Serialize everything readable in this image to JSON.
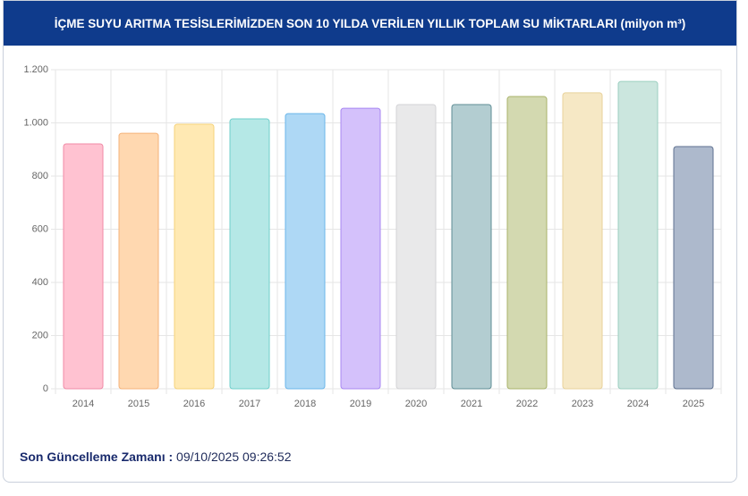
{
  "chart_data": {
    "type": "bar",
    "title": "İÇME SUYU ARITMA TESİSLERİMİZDEN SON 10 YILDA VERİLEN YILLIK TOPLAM SU MİKTARLARI (milyon m³)",
    "categories": [
      "2014",
      "2015",
      "2016",
      "2017",
      "2018",
      "2019",
      "2020",
      "2021",
      "2022",
      "2023",
      "2024",
      "2025"
    ],
    "values": [
      921,
      961,
      995,
      1015,
      1035,
      1055,
      1069,
      1069,
      1099,
      1113,
      1156,
      911
    ],
    "colors": [
      "#ffc2d1",
      "#ffd8b0",
      "#ffe9b3",
      "#b5e8e6",
      "#aed8f5",
      "#d4c1fb",
      "#e9e9ea",
      "#b3cdd1",
      "#d3d9b0",
      "#f6e8c5",
      "#cbe6de",
      "#adb9cc"
    ],
    "border_colors": [
      "#f08aa6",
      "#f5b278",
      "#f5d27a",
      "#6fcfcb",
      "#6bb6ea",
      "#a887f2",
      "#d3d3d6",
      "#5f8d95",
      "#a8b26a",
      "#e8d29a",
      "#9bcfc0",
      "#5f7190"
    ],
    "ylim": [
      0,
      1200
    ],
    "yticks": [
      0,
      200,
      400,
      600,
      800,
      {
        "value": 1000,
        "label": "1.000"
      },
      {
        "value": 1200,
        "label": "1.200"
      }
    ],
    "grid": true
  },
  "footer": {
    "label": "Son Güncelleme Zamanı :",
    "value": "09/10/2025 09:26:52"
  }
}
